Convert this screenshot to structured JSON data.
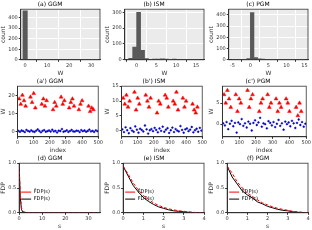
{
  "chart_data": [
    {
      "type": "histogram",
      "title": "(a) GGM",
      "xlabel": "W",
      "ylabel": "count",
      "color": "#595959",
      "grid": true,
      "bins": [
        -1,
        1,
        3,
        5,
        7,
        9,
        11,
        13,
        15,
        17,
        19,
        21,
        23,
        25,
        27,
        29,
        31,
        33
      ],
      "counts": [
        465,
        0,
        0,
        0,
        1,
        2,
        3,
        4,
        4,
        3,
        4,
        3,
        3,
        3,
        2,
        2,
        1
      ],
      "xlim": [
        -2,
        34
      ],
      "xticks": [
        0,
        10,
        20,
        30
      ],
      "ylim": [
        0,
        480
      ],
      "yticks": [
        0,
        100,
        200,
        300,
        400
      ]
    },
    {
      "type": "histogram",
      "title": "(b) ISM",
      "xlabel": "W",
      "ylabel": "count",
      "color": "#595959",
      "grid": true,
      "bins": [
        -2,
        -1,
        0,
        1,
        2,
        3,
        4,
        5,
        6,
        7,
        8,
        9,
        10,
        11,
        12,
        13,
        14,
        15,
        16
      ],
      "counts": [
        10,
        80,
        300,
        60,
        8,
        3,
        4,
        5,
        6,
        4,
        3,
        4,
        3,
        2,
        2,
        2,
        1,
        1
      ],
      "xlim": [
        -3,
        17
      ],
      "xticks": [
        0,
        5,
        10,
        15
      ],
      "ylim": [
        0,
        320
      ],
      "yticks": [
        0,
        100,
        200,
        300
      ]
    },
    {
      "type": "histogram",
      "title": "(c) PGM",
      "xlabel": "W",
      "ylabel": "count",
      "color": "#595959",
      "grid": true,
      "bins": [
        -5,
        -4,
        -3,
        -2,
        -1,
        0,
        1,
        2,
        3,
        4,
        5,
        6,
        7,
        8,
        9,
        10,
        11,
        12,
        13,
        14,
        15
      ],
      "counts": [
        1,
        1,
        2,
        3,
        10,
        420,
        20,
        8,
        6,
        5,
        4,
        4,
        3,
        3,
        3,
        2,
        2,
        1,
        1,
        1
      ],
      "xlim": [
        -6,
        16
      ],
      "xticks": [
        -5,
        0,
        5,
        10,
        15
      ],
      "ylim": [
        0,
        450
      ],
      "yticks": [
        0,
        100,
        200,
        300,
        400
      ]
    },
    {
      "type": "scatter",
      "title": "(a') GGM",
      "xlabel": "index",
      "ylabel": "W",
      "grid": false,
      "xlim": [
        0,
        500
      ],
      "xticks": [
        0,
        100,
        200,
        300,
        400,
        500
      ],
      "ylim": [
        -3,
        25
      ],
      "yticks": [
        0,
        10,
        20
      ],
      "series": [
        {
          "color": "#ff0000",
          "marker": "triangle",
          "x": [
            10,
            20,
            30,
            40,
            50,
            80,
            90,
            100,
            110,
            150,
            160,
            170,
            180,
            220,
            230,
            240,
            270,
            280,
            290,
            320,
            330,
            340,
            350,
            380,
            390,
            400,
            440,
            450,
            460,
            470
          ],
          "values": [
            18,
            15,
            20,
            17,
            14,
            19,
            16,
            21,
            13,
            15,
            18,
            14,
            17,
            12,
            16,
            14,
            19,
            15,
            17,
            13,
            16,
            18,
            14,
            12,
            15,
            17,
            14,
            11,
            13,
            12
          ]
        },
        {
          "color": "#0000cd",
          "marker": "point",
          "x": [
            5,
            15,
            25,
            35,
            45,
            55,
            65,
            75,
            85,
            95,
            105,
            115,
            125,
            135,
            145,
            155,
            165,
            175,
            185,
            195,
            205,
            215,
            225,
            235,
            245,
            255,
            265,
            275,
            285,
            295,
            305,
            315,
            325,
            335,
            345,
            355,
            365,
            375,
            385,
            395,
            405,
            415,
            425,
            435,
            445,
            455,
            465,
            475,
            485,
            495
          ],
          "values": [
            0.3,
            -0.2,
            0.5,
            0.1,
            -0.4,
            0.8,
            0.2,
            -0.1,
            0.6,
            0.0,
            -0.3,
            0.4,
            1.1,
            0.2,
            -0.5,
            0.3,
            0.7,
            -0.2,
            0.1,
            0.5,
            -0.1,
            0.9,
            0.0,
            0.3,
            -0.6,
            0.4,
            0.2,
            1.3,
            -0.2,
            0.1,
            0.6,
            -0.3,
            0.2,
            0.8,
            0.0,
            -0.1,
            0.4,
            0.3,
            -0.4,
            0.7,
            0.1,
            0.5,
            -0.2,
            0.2,
            1.0,
            0.0,
            0.3,
            -0.3,
            0.6,
            0.1
          ]
        }
      ]
    },
    {
      "type": "scatter",
      "title": "(b') ISM",
      "xlabel": "index",
      "ylabel": "W",
      "grid": false,
      "xlim": [
        0,
        500
      ],
      "xticks": [
        0,
        100,
        200,
        300,
        400,
        500
      ],
      "ylim": [
        -2,
        15
      ],
      "yticks": [
        0,
        5,
        10,
        15
      ],
      "series": [
        {
          "color": "#ff0000",
          "marker": "triangle",
          "x": [
            10,
            20,
            30,
            40,
            50,
            80,
            90,
            100,
            110,
            150,
            160,
            170,
            180,
            220,
            230,
            240,
            270,
            280,
            290,
            320,
            330,
            340,
            350,
            380,
            390,
            400,
            440,
            450,
            460,
            470
          ],
          "values": [
            11,
            9,
            12,
            8,
            10,
            13,
            7,
            11,
            9,
            12,
            10,
            8,
            11,
            6,
            10,
            9,
            12,
            11,
            8,
            10,
            9,
            13,
            7,
            11,
            8,
            10,
            9,
            7,
            6,
            8
          ]
        },
        {
          "color": "#0000cd",
          "marker": "point",
          "x": [
            5,
            15,
            25,
            35,
            45,
            55,
            65,
            75,
            85,
            95,
            105,
            115,
            125,
            135,
            145,
            155,
            165,
            175,
            185,
            195,
            205,
            215,
            225,
            235,
            245,
            255,
            265,
            275,
            285,
            295,
            305,
            315,
            325,
            335,
            345,
            355,
            365,
            375,
            385,
            395,
            405,
            415,
            425,
            435,
            445,
            455,
            465,
            475,
            485,
            495
          ],
          "values": [
            0.5,
            -0.4,
            1.2,
            0.2,
            -0.8,
            0.9,
            0.1,
            -0.3,
            1.5,
            0.4,
            -0.6,
            0.7,
            0.3,
            -0.2,
            1.8,
            0.5,
            -0.9,
            0.2,
            0.6,
            -0.1,
            1.0,
            0.3,
            -0.5,
            0.8,
            0.0,
            1.4,
            -0.3,
            0.4,
            0.9,
            -0.7,
            0.2,
            1.1,
            -0.4,
            0.6,
            0.1,
            -0.2,
            1.6,
            0.3,
            -0.6,
            0.5,
            0.8,
            -0.1,
            0.4,
            1.3,
            -0.5,
            0.2,
            0.7,
            -0.3,
            1.0,
            0.1
          ]
        }
      ]
    },
    {
      "type": "scatter",
      "title": "(c') PGM",
      "xlabel": "index",
      "ylabel": "W",
      "grid": false,
      "xlim": [
        0,
        500
      ],
      "xticks": [
        0,
        100,
        200,
        300,
        400,
        500
      ],
      "ylim": [
        -3,
        9
      ],
      "yticks": [
        0,
        5
      ],
      "series": [
        {
          "color": "#ff0000",
          "marker": "triangle",
          "x": [
            10,
            20,
            30,
            40,
            50,
            80,
            90,
            100,
            110,
            150,
            160,
            170,
            180,
            220,
            230,
            240,
            270,
            280,
            290,
            320,
            330,
            340,
            350,
            380,
            390,
            400,
            440,
            450,
            460,
            470
          ],
          "values": [
            7,
            5,
            8,
            6,
            4,
            7,
            3,
            6,
            5,
            8,
            4,
            6,
            7,
            3,
            5,
            6,
            7,
            4,
            5,
            6,
            3,
            5,
            4,
            6,
            5,
            3,
            4,
            2,
            5,
            3
          ]
        },
        {
          "color": "#0000cd",
          "marker": "point",
          "x": [
            5,
            15,
            25,
            35,
            45,
            55,
            65,
            75,
            85,
            95,
            105,
            115,
            125,
            135,
            145,
            155,
            165,
            175,
            185,
            195,
            205,
            215,
            225,
            235,
            245,
            255,
            265,
            275,
            285,
            295,
            305,
            315,
            325,
            335,
            345,
            355,
            365,
            375,
            385,
            395,
            405,
            415,
            425,
            435,
            445,
            455,
            465,
            475,
            485,
            495
          ],
          "values": [
            0.2,
            -0.3,
            0.5,
            -1.2,
            0.1,
            0.8,
            -0.5,
            0.3,
            -2.0,
            0.4,
            0.0,
            1.2,
            -0.4,
            0.2,
            -0.8,
            0.6,
            0.1,
            -1.5,
            0.3,
            0.9,
            -0.2,
            0.4,
            1.5,
            -0.6,
            0.2,
            0.0,
            -1.0,
            0.7,
            0.3,
            -0.3,
            0.5,
            -0.7,
            0.1,
            1.0,
            -0.4,
            0.2,
            -1.3,
            0.6,
            0.0,
            0.4,
            -0.5,
            0.8,
            0.2,
            -0.9,
            0.3,
            1.1,
            -0.2,
            0.5,
            -0.6,
            0.1
          ]
        }
      ]
    },
    {
      "type": "line",
      "title": "(d) GGM",
      "xlabel": "s",
      "ylabel": "FDP",
      "grid": false,
      "legend": "upper right",
      "xlim": [
        0,
        35
      ],
      "xticks": [
        0,
        10,
        20,
        30
      ],
      "ylim": [
        0,
        1
      ],
      "yticks": [
        {
          "value": 0,
          "label": "0.0"
        },
        {
          "value": 0.5,
          "label": "0.5"
        },
        {
          "value": 1,
          "label": "1.0"
        }
      ],
      "x": [
        0,
        0.5,
        1,
        1.5,
        2,
        3,
        5,
        10,
        20,
        30,
        34
      ],
      "series": [
        {
          "name": "F̂DP(s)",
          "color": "#ff0000",
          "line_style": "dashed",
          "values": [
            0.94,
            0.35,
            0.1,
            0.04,
            0.02,
            0.01,
            0,
            0,
            0,
            0,
            0
          ]
        },
        {
          "name": "FDP(s)",
          "color": "#000000",
          "line_style": "solid",
          "values": [
            0.94,
            0.3,
            0.07,
            0.02,
            0.01,
            0,
            0,
            0,
            0,
            0,
            0
          ]
        }
      ]
    },
    {
      "type": "line",
      "title": "(e) ISM",
      "xlabel": "s",
      "ylabel": "FDP",
      "grid": false,
      "legend": "upper right",
      "xlim": [
        0,
        4
      ],
      "xticks": [
        0,
        1,
        2,
        3,
        4
      ],
      "ylim": [
        0,
        1
      ],
      "yticks": [
        {
          "value": 0,
          "label": "0.0"
        },
        {
          "value": 0.5,
          "label": "0.5"
        },
        {
          "value": 1,
          "label": "1.0"
        }
      ],
      "x": [
        0,
        0.25,
        0.5,
        0.75,
        1,
        1.25,
        1.5,
        1.75,
        2,
        2.25,
        2.5,
        2.75,
        3,
        3.25,
        3.5,
        3.75,
        4
      ],
      "series": [
        {
          "name": "F̂DP(s)",
          "color": "#ff0000",
          "line_style": "dashed",
          "values": [
            0.94,
            0.78,
            0.6,
            0.46,
            0.35,
            0.27,
            0.2,
            0.15,
            0.11,
            0.08,
            0.06,
            0.04,
            0.03,
            0.02,
            0.01,
            0,
            0
          ]
        },
        {
          "name": "FDP(s)",
          "color": "#000000",
          "line_style": "solid",
          "values": [
            0.94,
            0.74,
            0.55,
            0.42,
            0.31,
            0.23,
            0.17,
            0.12,
            0.09,
            0.06,
            0.04,
            0.03,
            0.02,
            0.01,
            0,
            0,
            0
          ]
        }
      ]
    },
    {
      "type": "line",
      "title": "(f) PGM",
      "xlabel": "s",
      "ylabel": "FDP",
      "grid": false,
      "legend": "upper right",
      "xlim": [
        0,
        4
      ],
      "xticks": [
        0,
        1,
        2,
        3,
        4
      ],
      "ylim": [
        0,
        1
      ],
      "yticks": [
        {
          "value": 0,
          "label": "0.0"
        },
        {
          "value": 0.5,
          "label": "0.5"
        },
        {
          "value": 1,
          "label": "1.0"
        }
      ],
      "x": [
        0,
        0.25,
        0.5,
        0.75,
        1,
        1.25,
        1.5,
        1.75,
        2,
        2.25,
        2.5,
        2.75,
        3,
        3.25,
        3.5,
        3.75,
        4
      ],
      "series": [
        {
          "name": "F̂DP(s)",
          "color": "#ff0000",
          "line_style": "dashed",
          "values": [
            0.94,
            0.8,
            0.62,
            0.5,
            0.4,
            0.33,
            0.26,
            0.2,
            0.16,
            0.12,
            0.09,
            0.07,
            0.05,
            0.03,
            0.02,
            0.01,
            0
          ]
        },
        {
          "name": "FDP(s)",
          "color": "#000000",
          "line_style": "solid",
          "values": [
            0.94,
            0.72,
            0.58,
            0.44,
            0.36,
            0.3,
            0.22,
            0.18,
            0.13,
            0.1,
            0.07,
            0.05,
            0.04,
            0.02,
            0.01,
            0,
            0
          ]
        }
      ]
    }
  ]
}
